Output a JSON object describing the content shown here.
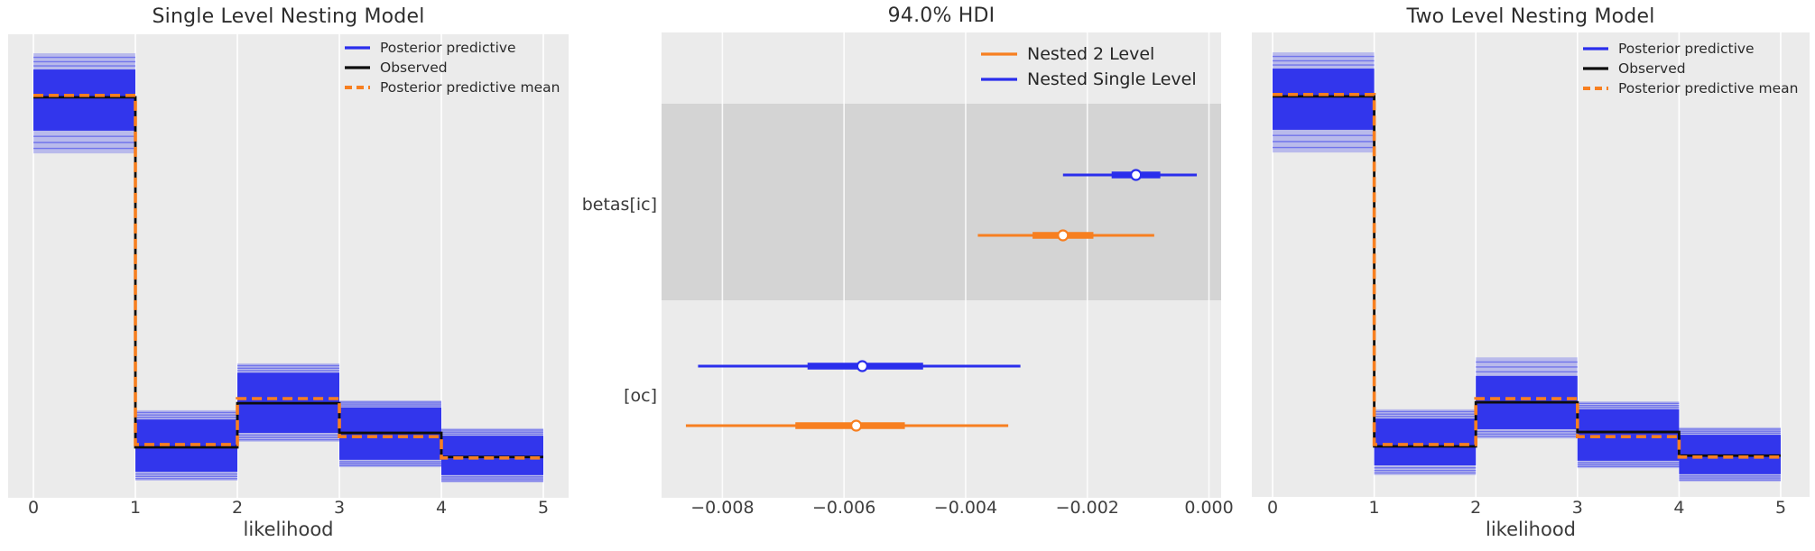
{
  "colors": {
    "figure_bg": "#ffffff",
    "axes_bg": "#ebebeb",
    "grid": "#ffffff",
    "blue": "#2a2eec",
    "orange": "#f77f20",
    "black": "#0d0d0d",
    "shaded_band": "#d4d4d4",
    "text": "#2e2e2e"
  },
  "chart_data": [
    {
      "type": "line",
      "style": "posterior-predictive-check-step",
      "title": "Single Level Nesting Model",
      "xlabel": "likelihood",
      "x_bin_edges": [
        0,
        1,
        2,
        3,
        4,
        5
      ],
      "xticks": [
        "0",
        "1",
        "2",
        "3",
        "4",
        "5"
      ],
      "y_axis": "density (relative units, no tick labels shown)",
      "ylim": [
        0,
        1
      ],
      "grid": "vertical white gridlines",
      "legend_position": "upper right",
      "legend": [
        {
          "label": "Posterior predictive",
          "color_key": "blue",
          "line": "solid"
        },
        {
          "label": "Observed",
          "color_key": "black",
          "line": "solid"
        },
        {
          "label": "Posterior predictive mean",
          "color_key": "orange",
          "line": "dashed"
        }
      ],
      "series": [
        {
          "name": "Observed",
          "color_key": "black",
          "values": [
            0.864,
            0.109,
            0.204,
            0.14,
            0.088
          ]
        },
        {
          "name": "Posterior predictive mean",
          "color_key": "orange",
          "dashed": true,
          "values": [
            0.868,
            0.115,
            0.214,
            0.132,
            0.086
          ]
        },
        {
          "name": "Posterior predictive",
          "color_key": "blue",
          "band_solid": [
            [
              0.792,
              0.924
            ],
            [
              0.056,
              0.169
            ],
            [
              0.14,
              0.27
            ],
            [
              0.082,
              0.195
            ],
            [
              0.049,
              0.134
            ]
          ],
          "band_fade": [
            [
              0.743,
              0.959
            ],
            [
              0.037,
              0.189
            ],
            [
              0.121,
              0.29
            ],
            [
              0.066,
              0.21
            ],
            [
              0.033,
              0.15
            ]
          ]
        }
      ]
    },
    {
      "type": "scatter",
      "style": "forest-interval",
      "title": "94.0% HDI",
      "xlim": [
        -0.009,
        0.0002
      ],
      "xticks": [
        "−0.008",
        "−0.006",
        "−0.004",
        "−0.002",
        "0.000"
      ],
      "xtick_values": [
        -0.008,
        -0.006,
        -0.004,
        -0.002,
        0.0
      ],
      "grid": "vertical white gridlines",
      "legend_position": "upper right",
      "legend": [
        {
          "label": "Nested 2 Level",
          "color_key": "orange"
        },
        {
          "label": "Nested Single Level",
          "color_key": "blue"
        }
      ],
      "rows": [
        {
          "label": "betas[ic]",
          "shaded": true,
          "intervals": [
            {
              "model": "Nested Single Level",
              "color_key": "blue",
              "hdi_94": [
                -0.0024,
                -0.0002
              ],
              "quartile": [
                -0.0016,
                -0.0008
              ],
              "median": -0.0012
            },
            {
              "model": "Nested 2 Level",
              "color_key": "orange",
              "hdi_94": [
                -0.0038,
                -0.0009
              ],
              "quartile": [
                -0.0029,
                -0.0019
              ],
              "median": -0.0024
            }
          ]
        },
        {
          "label": "[oc]",
          "shaded": false,
          "intervals": [
            {
              "model": "Nested Single Level",
              "color_key": "blue",
              "hdi_94": [
                -0.0084,
                -0.0031
              ],
              "quartile": [
                -0.0066,
                -0.0047
              ],
              "median": -0.0057
            },
            {
              "model": "Nested 2 Level",
              "color_key": "orange",
              "hdi_94": [
                -0.0086,
                -0.0033
              ],
              "quartile": [
                -0.0068,
                -0.005
              ],
              "median": -0.0058
            }
          ]
        }
      ]
    },
    {
      "type": "line",
      "style": "posterior-predictive-check-step",
      "title": "Two Level Nesting Model",
      "xlabel": "likelihood",
      "x_bin_edges": [
        0,
        1,
        2,
        3,
        4,
        5
      ],
      "xticks": [
        "0",
        "1",
        "2",
        "3",
        "4",
        "5"
      ],
      "y_axis": "density (relative units, no tick labels shown)",
      "ylim": [
        0,
        1
      ],
      "grid": "vertical white gridlines",
      "legend_position": "upper right",
      "legend": [
        {
          "label": "Posterior predictive",
          "color_key": "blue",
          "line": "solid"
        },
        {
          "label": "Observed",
          "color_key": "black",
          "line": "solid"
        },
        {
          "label": "Posterior predictive mean",
          "color_key": "orange",
          "line": "dashed"
        }
      ],
      "series": [
        {
          "name": "Observed",
          "color_key": "black",
          "values": [
            0.864,
            0.109,
            0.204,
            0.14,
            0.089
          ]
        },
        {
          "name": "Posterior predictive mean",
          "color_key": "orange",
          "dashed": true,
          "values": [
            0.868,
            0.113,
            0.212,
            0.13,
            0.086
          ]
        },
        {
          "name": "Posterior predictive",
          "color_key": "blue",
          "band_solid": [
            [
              0.792,
              0.924
            ],
            [
              0.068,
              0.169
            ],
            [
              0.146,
              0.261
            ],
            [
              0.078,
              0.189
            ],
            [
              0.049,
              0.134
            ]
          ],
          "band_fade": [
            [
              0.743,
              0.959
            ],
            [
              0.047,
              0.189
            ],
            [
              0.126,
              0.301
            ],
            [
              0.062,
              0.206
            ],
            [
              0.033,
              0.15
            ]
          ]
        }
      ]
    }
  ]
}
